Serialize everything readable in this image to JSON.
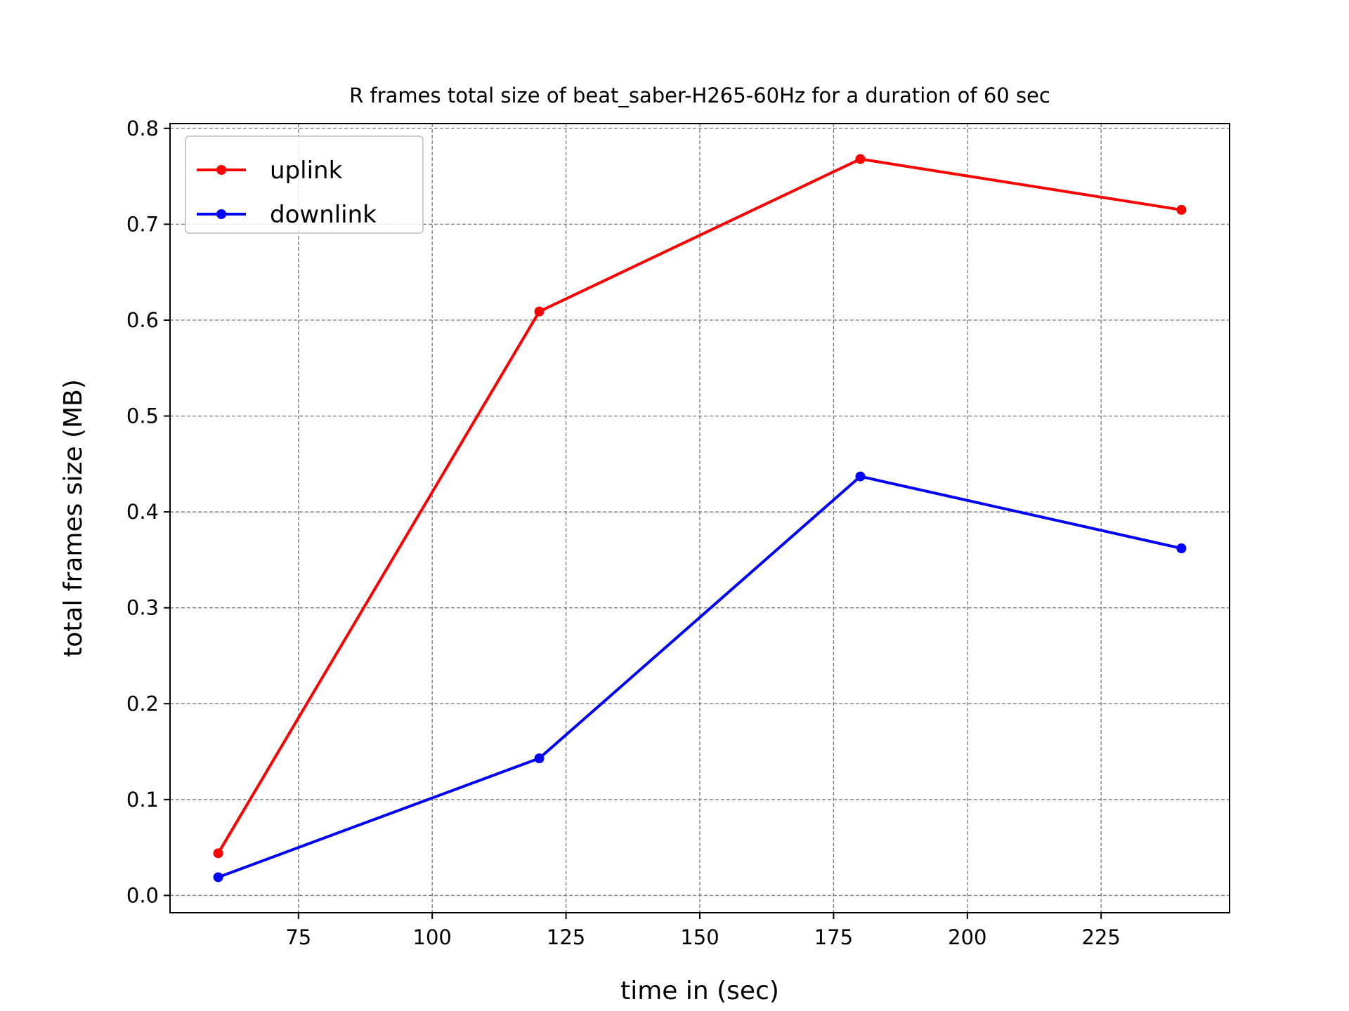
{
  "chart_data": {
    "type": "line",
    "title": "R frames total size of beat_saber-H265-60Hz for a duration of 60 sec",
    "xlabel": "time in (sec)",
    "ylabel": "total frames size (MB)",
    "xlim": [
      51,
      249
    ],
    "ylim": [
      -0.018,
      0.805
    ],
    "x_ticks": [
      75,
      100,
      125,
      150,
      175,
      200,
      225
    ],
    "y_ticks": [
      0.0,
      0.1,
      0.2,
      0.3,
      0.4,
      0.5,
      0.6,
      0.7,
      0.8
    ],
    "x_tick_labels": [
      "75",
      "100",
      "125",
      "150",
      "175",
      "200",
      "225"
    ],
    "y_tick_labels": [
      "0.0",
      "0.1",
      "0.2",
      "0.3",
      "0.4",
      "0.5",
      "0.6",
      "0.7",
      "0.8"
    ],
    "grid": true,
    "legend_position": "top-left",
    "x": [
      60,
      120,
      180,
      240
    ],
    "series": [
      {
        "name": "uplink",
        "color": "#ff0000",
        "values": [
          0.044,
          0.609,
          0.768,
          0.715
        ]
      },
      {
        "name": "downlink",
        "color": "#0000ff",
        "values": [
          0.019,
          0.143,
          0.437,
          0.362
        ]
      }
    ]
  }
}
